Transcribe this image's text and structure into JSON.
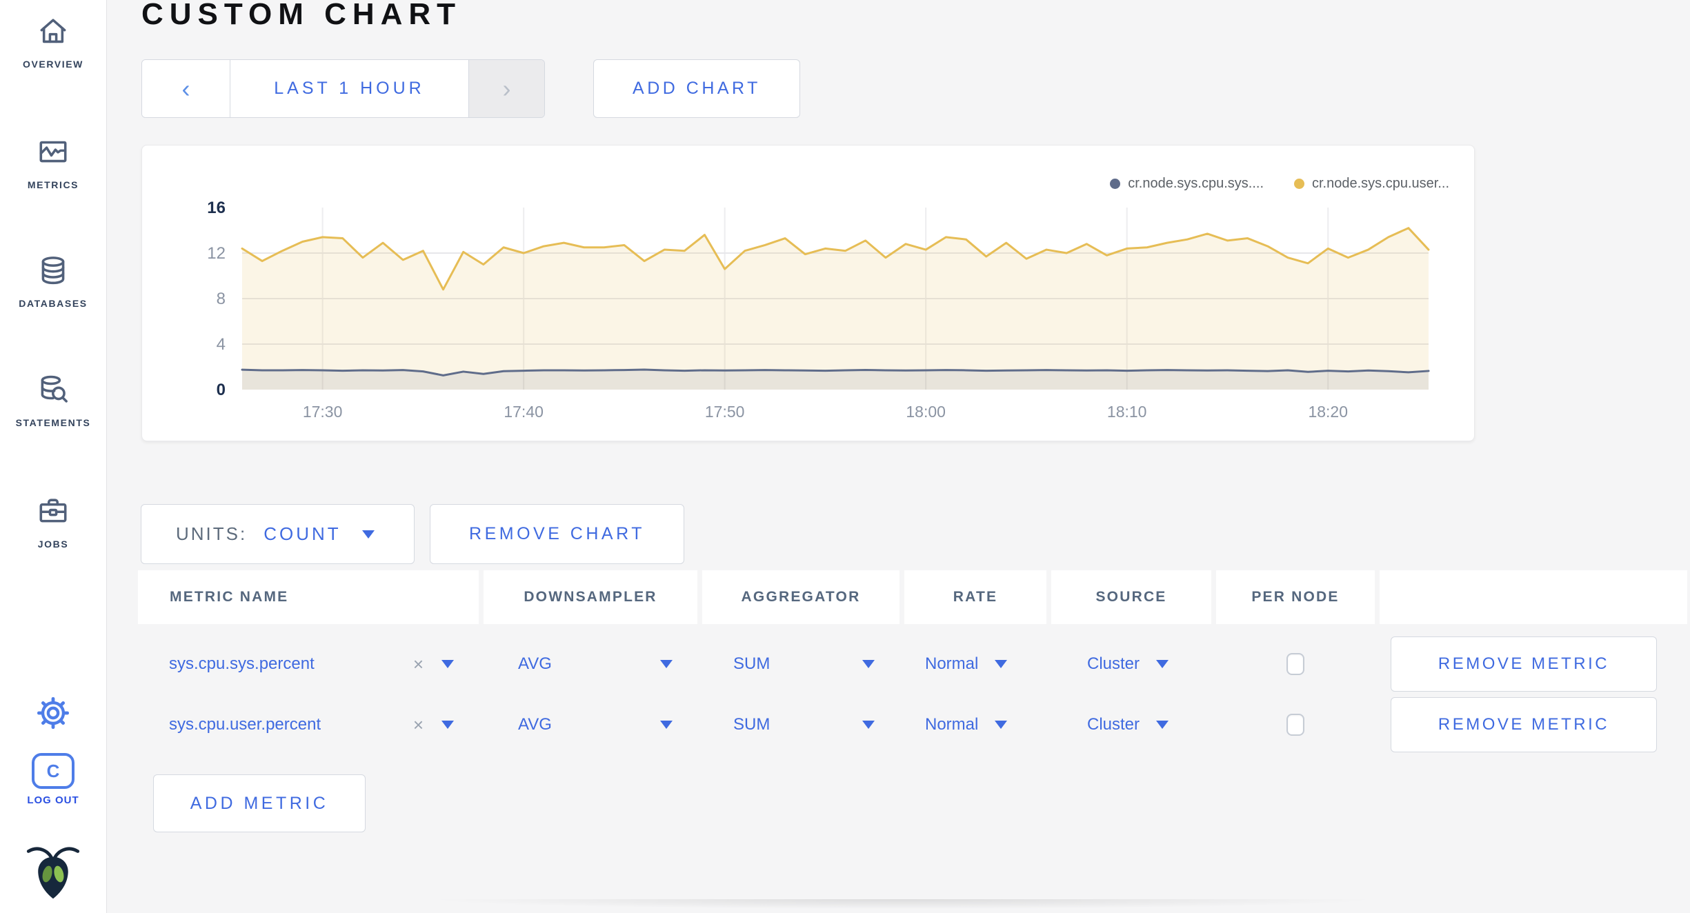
{
  "header": {
    "title": "CUSTOM CHART"
  },
  "toolbar": {
    "prev": "‹",
    "next": "›",
    "time_range": "LAST 1 HOUR",
    "add_chart": "ADD CHART"
  },
  "sidebar": {
    "items": [
      {
        "label": "OVERVIEW"
      },
      {
        "label": "METRICS"
      },
      {
        "label": "DATABASES"
      },
      {
        "label": "STATEMENTS"
      },
      {
        "label": "JOBS"
      }
    ],
    "logout_initial": "C",
    "logout_label": "LOG OUT"
  },
  "colors": {
    "accent_blue": "#3F6AE0",
    "logout_blue": "#2B50E2",
    "gear_blue": "#4E7DE8",
    "sidebar_slate": "#51607A",
    "series_sys": "#5F6C8A",
    "series_user": "#E6BD55",
    "page_bg": "#F5F5F6"
  },
  "chart_data": {
    "type": "line",
    "title": "",
    "xlabel": "",
    "ylabel": "",
    "grid": true,
    "legend_position": "top-right",
    "x_start": "17:26",
    "x_end": "18:25",
    "x_ticks": [
      "17:30",
      "17:40",
      "17:50",
      "18:00",
      "18:10",
      "18:20"
    ],
    "ylim": [
      0,
      16
    ],
    "y_ticks": [
      16,
      12,
      8,
      4,
      0
    ],
    "y_gridlines": [
      12,
      8,
      4
    ],
    "series": [
      {
        "name": "cr.node.sys.cpu.sys....",
        "metric": "sys.cpu.sys.percent",
        "color": "#5F6C8A",
        "fill": "rgba(95,108,138,0.12)",
        "values": [
          1.75,
          1.7,
          1.7,
          1.72,
          1.7,
          1.66,
          1.7,
          1.68,
          1.72,
          1.6,
          1.25,
          1.58,
          1.38,
          1.62,
          1.66,
          1.7,
          1.7,
          1.68,
          1.7,
          1.72,
          1.76,
          1.7,
          1.66,
          1.7,
          1.68,
          1.7,
          1.72,
          1.7,
          1.68,
          1.66,
          1.7,
          1.73,
          1.7,
          1.68,
          1.7,
          1.72,
          1.7,
          1.66,
          1.68,
          1.7,
          1.72,
          1.7,
          1.68,
          1.7,
          1.66,
          1.7,
          1.72,
          1.7,
          1.68,
          1.7,
          1.66,
          1.63,
          1.7,
          1.56,
          1.66,
          1.6,
          1.68,
          1.62,
          1.52,
          1.64
        ]
      },
      {
        "name": "cr.node.sys.cpu.user...",
        "metric": "sys.cpu.user.percent",
        "color": "#E6BD55",
        "fill": "rgba(230,189,85,0.15)",
        "values": [
          12.4,
          11.3,
          12.2,
          13.0,
          13.4,
          13.3,
          11.6,
          12.9,
          11.4,
          12.2,
          8.8,
          12.1,
          11.0,
          12.5,
          12.0,
          12.6,
          12.9,
          12.5,
          12.5,
          12.7,
          11.3,
          12.3,
          12.2,
          13.6,
          10.6,
          12.2,
          12.7,
          13.3,
          11.9,
          12.4,
          12.2,
          13.1,
          11.6,
          12.8,
          12.3,
          13.4,
          13.2,
          11.7,
          12.9,
          11.5,
          12.3,
          12.0,
          12.8,
          11.8,
          12.4,
          12.5,
          12.9,
          13.2,
          13.7,
          13.1,
          13.3,
          12.6,
          11.6,
          11.1,
          12.4,
          11.6,
          12.3,
          13.4,
          14.2,
          12.3
        ]
      }
    ]
  },
  "units_bar": {
    "label": "UNITS:",
    "value": "COUNT",
    "remove_chart": "REMOVE CHART"
  },
  "metrics_table": {
    "columns": [
      "METRIC NAME",
      "DOWNSAMPLER",
      "AGGREGATOR",
      "RATE",
      "SOURCE",
      "PER NODE",
      ""
    ],
    "rows": [
      {
        "metric": "sys.cpu.sys.percent",
        "clear": "×",
        "downsampler": "AVG",
        "aggregator": "SUM",
        "rate": "Normal",
        "source": "Cluster",
        "per_node": false,
        "remove": "REMOVE METRIC"
      },
      {
        "metric": "sys.cpu.user.percent",
        "clear": "×",
        "downsampler": "AVG",
        "aggregator": "SUM",
        "rate": "Normal",
        "source": "Cluster",
        "per_node": false,
        "remove": "REMOVE METRIC"
      }
    ]
  },
  "add_metric_label": "ADD METRIC"
}
